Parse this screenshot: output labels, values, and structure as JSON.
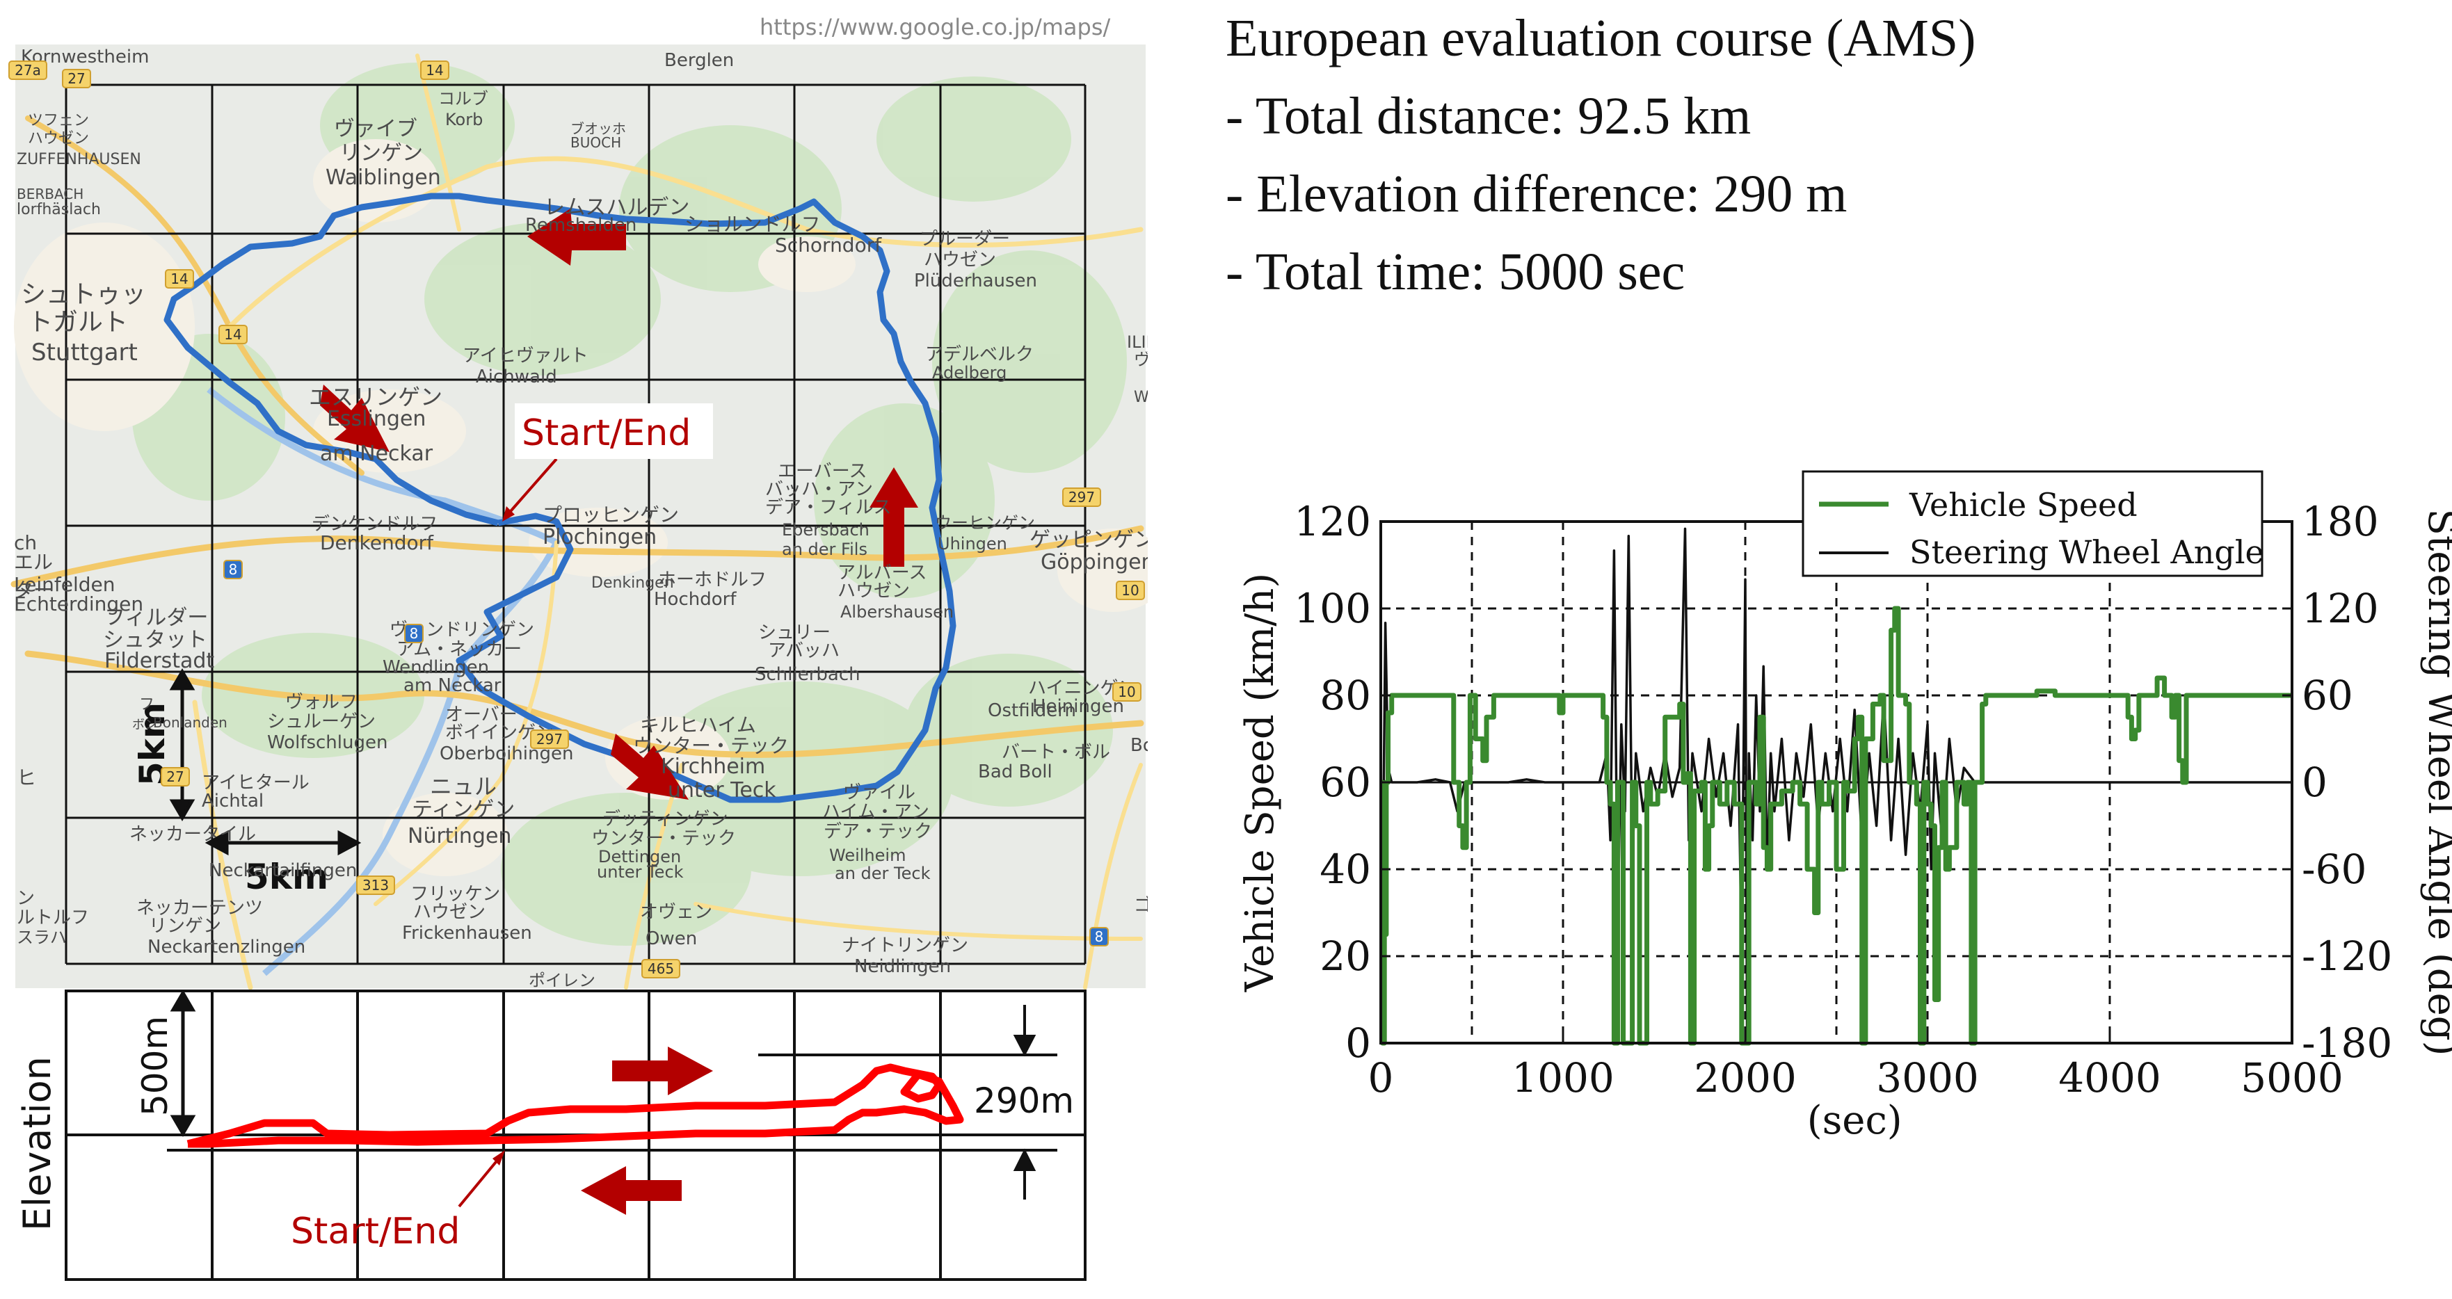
{
  "map": {
    "url": "https://www.google.co.jp/maps/",
    "start_end": "Start/End",
    "scale_label_vertical": "5km",
    "scale_label_horizontal": "5km",
    "places": [
      "Kornwestheim",
      "Berglen",
      "ヴァイブ",
      "リンゲン",
      "Waiblingen",
      "コルブ",
      "Korb",
      "ブオッホ",
      "BUOCH",
      "レムスハルデン",
      "Remshalden",
      "ショルンドルフ",
      "Schorndorf",
      "プルーダー",
      "ハウゼン",
      "Plüderhausen",
      "シュトゥッ",
      "トガルト",
      "Stuttgart",
      "アイヒヴァルト",
      "Aichwald",
      "エスリンゲン",
      "Esslingen",
      "am Neckar",
      "アデルベルク",
      "Adelberg",
      "プロッヒンゲン",
      "Plochingen",
      "エーバース",
      "バッハ・アン",
      "デア・フィルス",
      "Ebersbach",
      "an der Fils",
      "ゲッピンゲン",
      "Göppingen",
      "ウーヒンゲン",
      "Uhingen",
      "デンケンドルフ",
      "Denkendorf",
      "ホーホドルフ",
      "Hochdorf",
      "アルバース",
      "ハウゼン",
      "Albershausen",
      "フィルダー",
      "シュタット",
      "Filderstadt",
      "ヴェンドリンゲン",
      "アム・ネッカー",
      "Wendlingen",
      "am Neckar",
      "シュリー",
      "アバッハ",
      "Schlierbach",
      "ヴォルフ",
      "シュルーゲン",
      "Wolfschlugen",
      "オーバー",
      "ボイインゲン",
      "Oberboihingen",
      "キルヒハイム",
      "ウンター・テック",
      "Kirchheim",
      "unter Teck",
      "ハイニンゲン",
      "Heiningen",
      "バート・ボル",
      "Bad Boll",
      "アイヒタール",
      "Aichtal",
      "ニュル",
      "ティンゲン",
      "Nürtingen",
      "ネッカータイル",
      "Neckartailfingen",
      "デッティンゲン",
      "ウンター・テック",
      "Dettingen",
      "unter Teck",
      "ヴァイル",
      "ハイム・アン",
      "デア・テック",
      "Weilheim",
      "an der Teck",
      "フリッケン",
      "ハウゼン",
      "Frickenhausen",
      "オヴェン",
      "Owen",
      "ネッカーテンツ",
      "リンゲン",
      "Neckartenzlingen",
      "ナイトリンゲン",
      "Neidlingen",
      "Ostfildern",
      "Denkingen",
      "Bonlanden",
      "Echterdingen",
      "Leinfelden",
      "ヴェ",
      "Wäsch",
      "ツフェン",
      "ハウゼン",
      "ZUFFENHAUSEN",
      "ポイレン",
      "Bolheim",
      "ヒ",
      "ch",
      "エル",
      "ター",
      "ン",
      "ルトルフ",
      "スラハ",
      "lorfhäslach",
      "BERBACH",
      "ILIBACH",
      "ゴンゴ",
      "フ",
      "ボン",
      "BONLANDEN"
    ],
    "roads": [
      "27a",
      "27",
      "14",
      "14",
      "14",
      "10",
      "297",
      "8",
      "8",
      "27",
      "297",
      "313",
      "465",
      "8",
      "10"
    ]
  },
  "elevation": {
    "axis_label": "Elevation",
    "scale_label": "500m",
    "diff_label": "290m",
    "start_end": "Start/End"
  },
  "info": {
    "title": "European evaluation course (AMS)",
    "distance": "- Total distance: 92.5 km",
    "elevation": "- Elevation difference: 290 m",
    "time": "- Total time: 5000 sec"
  },
  "chart_data": {
    "type": "line",
    "xlabel": "(sec)",
    "ylabel_left": "Vehicle Speed (km/h)",
    "ylabel_right": "Steering Wheel Angle (deg)",
    "xlim": [
      0,
      5000
    ],
    "ylim_left": [
      0,
      120
    ],
    "ylim_right": [
      -180,
      180
    ],
    "x_ticks": [
      0,
      1000,
      2000,
      3000,
      4000,
      5000
    ],
    "y_ticks_left": [
      0,
      20,
      40,
      60,
      80,
      100,
      120
    ],
    "y_ticks_right": [
      -180,
      -120,
      -60,
      0,
      60,
      120,
      180
    ],
    "grid": "dashed",
    "legend_position": "top-right",
    "series": [
      {
        "name": "Vehicle Speed",
        "axis": "left",
        "color": "#3a8a2f",
        "points": [
          [
            0,
            60
          ],
          [
            10,
            0
          ],
          [
            20,
            25
          ],
          [
            30,
            60
          ],
          [
            40,
            76
          ],
          [
            60,
            80
          ],
          [
            100,
            80
          ],
          [
            200,
            80
          ],
          [
            300,
            80
          ],
          [
            380,
            80
          ],
          [
            400,
            60
          ],
          [
            430,
            50
          ],
          [
            450,
            45
          ],
          [
            470,
            60
          ],
          [
            490,
            80
          ],
          [
            500,
            80
          ],
          [
            520,
            70
          ],
          [
            560,
            65
          ],
          [
            580,
            75
          ],
          [
            620,
            80
          ],
          [
            700,
            80
          ],
          [
            800,
            80
          ],
          [
            900,
            80
          ],
          [
            950,
            80
          ],
          [
            980,
            76
          ],
          [
            1000,
            80
          ],
          [
            1050,
            80
          ],
          [
            1100,
            80
          ],
          [
            1150,
            80
          ],
          [
            1200,
            80
          ],
          [
            1220,
            75
          ],
          [
            1240,
            60
          ],
          [
            1260,
            55
          ],
          [
            1280,
            0
          ],
          [
            1300,
            60
          ],
          [
            1330,
            0
          ],
          [
            1360,
            0
          ],
          [
            1380,
            60
          ],
          [
            1400,
            50
          ],
          [
            1420,
            0
          ],
          [
            1440,
            0
          ],
          [
            1460,
            60
          ],
          [
            1480,
            55
          ],
          [
            1520,
            58
          ],
          [
            1560,
            75
          ],
          [
            1600,
            75
          ],
          [
            1640,
            78
          ],
          [
            1660,
            60
          ],
          [
            1680,
            62
          ],
          [
            1700,
            0
          ],
          [
            1720,
            58
          ],
          [
            1760,
            60
          ],
          [
            1780,
            40
          ],
          [
            1800,
            50
          ],
          [
            1820,
            60
          ],
          [
            1860,
            55
          ],
          [
            1900,
            60
          ],
          [
            1940,
            55
          ],
          [
            1980,
            0
          ],
          [
            2000,
            0
          ],
          [
            2020,
            60
          ],
          [
            2060,
            55
          ],
          [
            2080,
            75
          ],
          [
            2100,
            45
          ],
          [
            2120,
            40
          ],
          [
            2140,
            55
          ],
          [
            2200,
            58
          ],
          [
            2260,
            60
          ],
          [
            2300,
            55
          ],
          [
            2340,
            40
          ],
          [
            2380,
            30
          ],
          [
            2400,
            60
          ],
          [
            2420,
            55
          ],
          [
            2460,
            60
          ],
          [
            2500,
            40
          ],
          [
            2540,
            60
          ],
          [
            2560,
            58
          ],
          [
            2600,
            70
          ],
          [
            2620,
            75
          ],
          [
            2640,
            0
          ],
          [
            2660,
            70
          ],
          [
            2700,
            78
          ],
          [
            2740,
            80
          ],
          [
            2760,
            65
          ],
          [
            2800,
            95
          ],
          [
            2820,
            100
          ],
          [
            2840,
            80
          ],
          [
            2880,
            78
          ],
          [
            2900,
            60
          ],
          [
            2940,
            55
          ],
          [
            2960,
            0
          ],
          [
            2980,
            60
          ],
          [
            3000,
            55
          ],
          [
            3020,
            50
          ],
          [
            3040,
            10
          ],
          [
            3060,
            45
          ],
          [
            3080,
            60
          ],
          [
            3100,
            40
          ],
          [
            3120,
            45
          ],
          [
            3160,
            60
          ],
          [
            3200,
            55
          ],
          [
            3220,
            60
          ],
          [
            3240,
            0
          ],
          [
            3260,
            60
          ],
          [
            3300,
            78
          ],
          [
            3320,
            80
          ],
          [
            3400,
            80
          ],
          [
            3500,
            80
          ],
          [
            3600,
            81
          ],
          [
            3700,
            80
          ],
          [
            3800,
            80
          ],
          [
            3900,
            80
          ],
          [
            4000,
            80
          ],
          [
            4080,
            80
          ],
          [
            4100,
            75
          ],
          [
            4120,
            70
          ],
          [
            4140,
            72
          ],
          [
            4160,
            80
          ],
          [
            4200,
            80
          ],
          [
            4260,
            84
          ],
          [
            4300,
            80
          ],
          [
            4320,
            80
          ],
          [
            4340,
            75
          ],
          [
            4360,
            80
          ],
          [
            4380,
            65
          ],
          [
            4400,
            60
          ],
          [
            4420,
            80
          ],
          [
            4500,
            80
          ],
          [
            4600,
            80
          ],
          [
            4700,
            80
          ],
          [
            4800,
            80
          ],
          [
            4900,
            80
          ],
          [
            5000,
            80
          ]
        ]
      },
      {
        "name": "Steering Wheel Angle",
        "axis": "right",
        "color": "#111111",
        "points": [
          [
            0,
            0
          ],
          [
            15,
            -20
          ],
          [
            25,
            110
          ],
          [
            40,
            10
          ],
          [
            60,
            0
          ],
          [
            100,
            0
          ],
          [
            200,
            0
          ],
          [
            300,
            2
          ],
          [
            380,
            0
          ],
          [
            420,
            -20
          ],
          [
            460,
            0
          ],
          [
            500,
            0
          ],
          [
            600,
            0
          ],
          [
            700,
            0
          ],
          [
            800,
            2
          ],
          [
            900,
            0
          ],
          [
            1000,
            0
          ],
          [
            1100,
            0
          ],
          [
            1200,
            0
          ],
          [
            1240,
            20
          ],
          [
            1260,
            -40
          ],
          [
            1280,
            160
          ],
          [
            1300,
            -100
          ],
          [
            1320,
            40
          ],
          [
            1340,
            -20
          ],
          [
            1360,
            170
          ],
          [
            1380,
            -60
          ],
          [
            1400,
            20
          ],
          [
            1440,
            -20
          ],
          [
            1480,
            10
          ],
          [
            1520,
            -10
          ],
          [
            1560,
            20
          ],
          [
            1600,
            -10
          ],
          [
            1640,
            10
          ],
          [
            1670,
            175
          ],
          [
            1690,
            -40
          ],
          [
            1710,
            20
          ],
          [
            1760,
            -20
          ],
          [
            1800,
            30
          ],
          [
            1840,
            -10
          ],
          [
            1880,
            20
          ],
          [
            1920,
            -30
          ],
          [
            1960,
            40
          ],
          [
            1980,
            -120
          ],
          [
            2000,
            140
          ],
          [
            2010,
            -180
          ],
          [
            2020,
            20
          ],
          [
            2040,
            -40
          ],
          [
            2060,
            60
          ],
          [
            2080,
            -20
          ],
          [
            2100,
            80
          ],
          [
            2120,
            -60
          ],
          [
            2140,
            20
          ],
          [
            2160,
            -20
          ],
          [
            2200,
            30
          ],
          [
            2240,
            -40
          ],
          [
            2280,
            20
          ],
          [
            2320,
            -10
          ],
          [
            2360,
            40
          ],
          [
            2400,
            -30
          ],
          [
            2440,
            20
          ],
          [
            2480,
            -20
          ],
          [
            2520,
            30
          ],
          [
            2560,
            -20
          ],
          [
            2600,
            50
          ],
          [
            2640,
            -40
          ],
          [
            2680,
            20
          ],
          [
            2720,
            -30
          ],
          [
            2760,
            60
          ],
          [
            2800,
            -40
          ],
          [
            2840,
            30
          ],
          [
            2880,
            -50
          ],
          [
            2920,
            20
          ],
          [
            2960,
            -20
          ],
          [
            3000,
            40
          ],
          [
            3020,
            -60
          ],
          [
            3040,
            20
          ],
          [
            3080,
            -40
          ],
          [
            3120,
            30
          ],
          [
            3160,
            -20
          ],
          [
            3200,
            10
          ],
          [
            3260,
            0
          ],
          [
            3300,
            0
          ],
          [
            3400,
            0
          ],
          [
            3600,
            0
          ],
          [
            3800,
            0
          ],
          [
            4000,
            0
          ],
          [
            4200,
            0
          ],
          [
            4400,
            0
          ],
          [
            4600,
            0
          ],
          [
            4800,
            0
          ],
          [
            5000,
            0
          ]
        ]
      }
    ]
  }
}
